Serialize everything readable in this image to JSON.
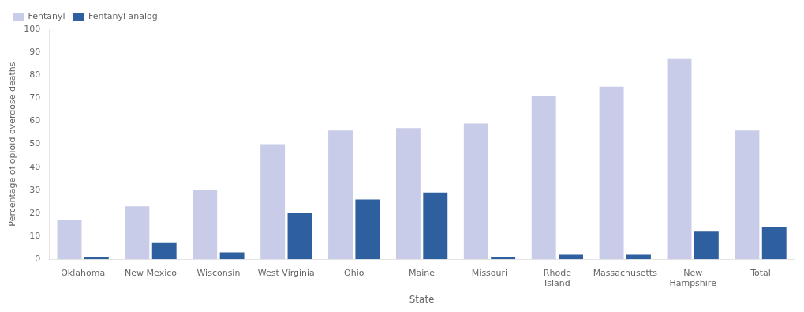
{
  "chart_data": {
    "type": "bar",
    "xlabel": "State",
    "ylabel": "Percentage of opioid overdose deaths",
    "categories": [
      "Oklahoma",
      "New Mexico",
      "Wisconsin",
      "West Virginia",
      "Ohio",
      "Maine",
      "Missouri",
      "Rhode\nIsland",
      "Massachusetts",
      "New\nHampshire",
      "Total"
    ],
    "series": [
      {
        "name": "Fentanyl",
        "color": "#c8cce8",
        "values": [
          17,
          23,
          30,
          50,
          56,
          57,
          59,
          71,
          75,
          87,
          56
        ]
      },
      {
        "name": "Fentanyl analog",
        "color": "#2e5f9e",
        "values": [
          1,
          7,
          3,
          20,
          26,
          29,
          1,
          2,
          2,
          12,
          14
        ]
      }
    ],
    "ylim": [
      0,
      100
    ],
    "yticks": [
      0,
      10,
      20,
      30,
      40,
      50,
      60,
      70,
      80,
      90,
      100
    ],
    "grid": false,
    "legend": "upper left"
  }
}
